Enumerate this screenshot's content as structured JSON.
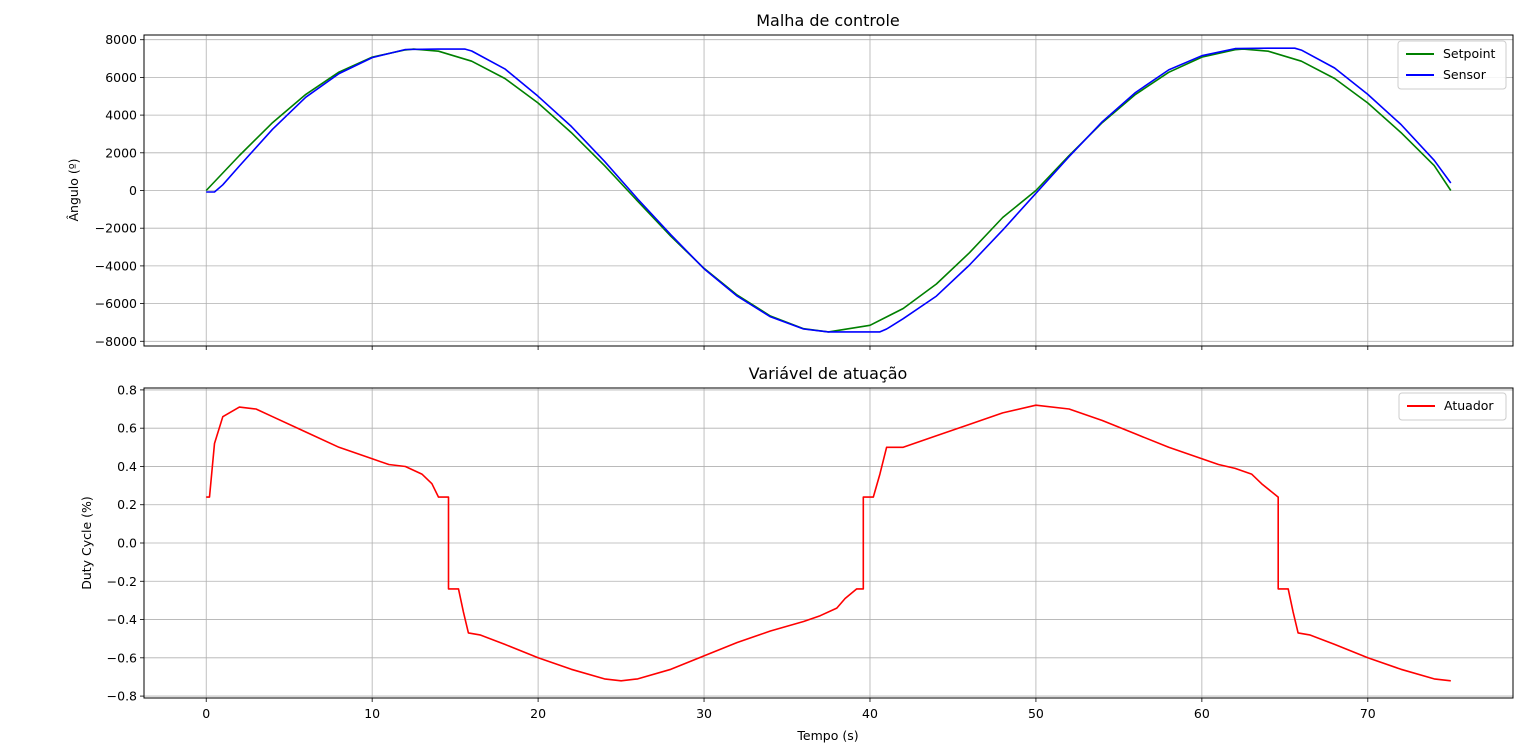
{
  "chart_data": [
    {
      "type": "line",
      "title": "Malha de controle",
      "xlabel": "",
      "ylabel": "Ângulo (º)",
      "xlim": [
        -3.75,
        78.75
      ],
      "ylim": [
        -8250,
        8250
      ],
      "xticks": [
        0,
        10,
        20,
        30,
        40,
        50,
        60,
        70
      ],
      "yticks": [
        -8000,
        -6000,
        -4000,
        -2000,
        0,
        2000,
        4000,
        6000,
        8000
      ],
      "ytick_labels": [
        "−8000",
        "−6000",
        "−4000",
        "−2000",
        "0",
        "2000",
        "4000",
        "6000",
        "8000"
      ],
      "grid": true,
      "legend_position": "top-right",
      "series": [
        {
          "name": "Setpoint",
          "color": "#008000",
          "x": [
            0,
            2,
            4,
            6,
            8,
            10,
            12,
            12.5,
            14,
            16,
            18,
            20,
            22,
            24,
            26,
            28,
            30,
            32,
            34,
            36,
            37.5,
            40,
            42,
            44,
            46,
            48,
            50,
            52,
            54,
            56,
            58,
            60,
            62,
            62.5,
            64,
            66,
            68,
            70,
            72,
            74,
            75
          ],
          "y": [
            0,
            1855,
            3600,
            5100,
            6280,
            7080,
            7460,
            7500,
            7390,
            6860,
            5940,
            4640,
            3070,
            1320,
            -570,
            -2430,
            -4130,
            -5550,
            -6660,
            -7330,
            -7500,
            -7150,
            -6260,
            -4960,
            -3300,
            -1430,
            0,
            1850,
            3600,
            5100,
            6270,
            7080,
            7470,
            7500,
            7390,
            6860,
            5940,
            4640,
            3070,
            1320,
            0
          ]
        },
        {
          "name": "Sensor",
          "color": "#0000ff",
          "x": [
            0,
            0.5,
            1,
            2,
            4,
            6,
            8,
            10,
            12,
            14,
            15.6,
            16,
            18,
            20,
            22,
            24,
            26,
            28,
            30,
            32,
            34,
            36,
            37.5,
            40.6,
            41,
            42,
            44,
            46,
            48,
            50,
            52,
            54,
            56,
            58,
            60,
            62,
            64,
            65.6,
            66,
            68,
            70,
            72,
            74,
            75
          ],
          "y": [
            -80,
            -80,
            300,
            1300,
            3250,
            4950,
            6200,
            7050,
            7480,
            7500,
            7500,
            7400,
            6450,
            5000,
            3400,
            1550,
            -450,
            -2350,
            -4150,
            -5600,
            -6700,
            -7350,
            -7500,
            -7500,
            -7350,
            -6800,
            -5600,
            -3950,
            -2100,
            -150,
            1800,
            3650,
            5200,
            6400,
            7150,
            7530,
            7550,
            7550,
            7450,
            6500,
            5100,
            3500,
            1600,
            400
          ]
        }
      ]
    },
    {
      "type": "line",
      "title": "Variável de atuação",
      "xlabel": "Tempo (s)",
      "ylabel": "Duty Cycle (%)",
      "xlim": [
        -3.75,
        78.75
      ],
      "ylim": [
        -0.81,
        0.81
      ],
      "xticks": [
        0,
        10,
        20,
        30,
        40,
        50,
        60,
        70
      ],
      "yticks": [
        -0.8,
        -0.6,
        -0.4,
        -0.2,
        0.0,
        0.2,
        0.4,
        0.6,
        0.8
      ],
      "ytick_labels": [
        "−0.8",
        "−0.6",
        "−0.4",
        "−0.2",
        "0.0",
        "0.2",
        "0.4",
        "0.6",
        "0.8"
      ],
      "grid": true,
      "legend_position": "top-right",
      "series": [
        {
          "name": "Atuador",
          "color": "#ff0000",
          "x": [
            0,
            0.2,
            0.5,
            1,
            2,
            3,
            4,
            6,
            8,
            10,
            11,
            12,
            13,
            13.6,
            14,
            14.6,
            14.6,
            15.2,
            15.5,
            15.8,
            16.5,
            18,
            20,
            22,
            24,
            25,
            26,
            28,
            30,
            32,
            34,
            36,
            37,
            38,
            38.5,
            39.2,
            39.6,
            39.6,
            40.2,
            40.6,
            41,
            42,
            44,
            46,
            48,
            50,
            52,
            54,
            56,
            58,
            60,
            61,
            62,
            63,
            63.6,
            64.6,
            64.6,
            65.2,
            65.5,
            65.8,
            66.5,
            68,
            70,
            72,
            74,
            75
          ],
          "y": [
            0.24,
            0.24,
            0.52,
            0.66,
            0.71,
            0.7,
            0.66,
            0.58,
            0.5,
            0.44,
            0.41,
            0.4,
            0.36,
            0.31,
            0.24,
            0.24,
            -0.24,
            -0.24,
            -0.36,
            -0.47,
            -0.48,
            -0.53,
            -0.6,
            -0.66,
            -0.71,
            -0.72,
            -0.71,
            -0.66,
            -0.59,
            -0.52,
            -0.46,
            -0.41,
            -0.38,
            -0.34,
            -0.29,
            -0.24,
            -0.24,
            0.24,
            0.24,
            0.36,
            0.5,
            0.5,
            0.56,
            0.62,
            0.68,
            0.72,
            0.7,
            0.64,
            0.57,
            0.5,
            0.44,
            0.41,
            0.39,
            0.36,
            0.31,
            0.24,
            -0.24,
            -0.24,
            -0.36,
            -0.47,
            -0.48,
            -0.53,
            -0.6,
            -0.66,
            -0.71,
            -0.72
          ]
        }
      ]
    }
  ]
}
